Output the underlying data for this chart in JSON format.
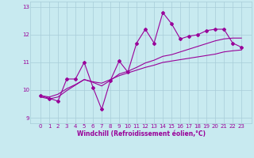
{
  "title": "",
  "xlabel": "Windchill (Refroidissement éolien,°C)",
  "ylabel": "",
  "bg_color": "#c8eaf0",
  "grid_color": "#a8cdd8",
  "line_color": "#990099",
  "x": [
    0,
    1,
    2,
    3,
    4,
    5,
    6,
    7,
    8,
    9,
    10,
    11,
    12,
    13,
    14,
    15,
    16,
    17,
    18,
    19,
    20,
    21,
    22,
    23
  ],
  "y_jagged": [
    9.8,
    9.7,
    9.6,
    10.4,
    10.4,
    11.0,
    10.1,
    9.3,
    10.35,
    11.05,
    10.65,
    11.7,
    12.2,
    11.7,
    12.8,
    12.4,
    11.85,
    11.95,
    12.0,
    12.15,
    12.2,
    12.2,
    11.7,
    11.55
  ],
  "y_smooth1": [
    9.8,
    9.75,
    9.85,
    10.05,
    10.2,
    10.38,
    10.3,
    10.25,
    10.38,
    10.52,
    10.62,
    10.72,
    10.82,
    10.9,
    11.0,
    11.05,
    11.1,
    11.15,
    11.2,
    11.25,
    11.3,
    11.38,
    11.42,
    11.45
  ],
  "y_smooth2": [
    9.75,
    9.68,
    9.75,
    9.98,
    10.18,
    10.38,
    10.28,
    10.15,
    10.35,
    10.58,
    10.68,
    10.82,
    10.98,
    11.08,
    11.22,
    11.28,
    11.38,
    11.48,
    11.58,
    11.68,
    11.78,
    11.85,
    11.88,
    11.88
  ],
  "ylim": [
    8.8,
    13.2
  ],
  "yticks": [
    9,
    10,
    11,
    12,
    13
  ],
  "xticks": [
    0,
    1,
    2,
    3,
    4,
    5,
    6,
    7,
    8,
    9,
    10,
    11,
    12,
    13,
    14,
    15,
    16,
    17,
    18,
    19,
    20,
    21,
    22,
    23
  ],
  "marker": "D",
  "markersize": 2.0,
  "linewidth": 0.8,
  "tick_fontsize": 5.0,
  "xlabel_fontsize": 5.5
}
